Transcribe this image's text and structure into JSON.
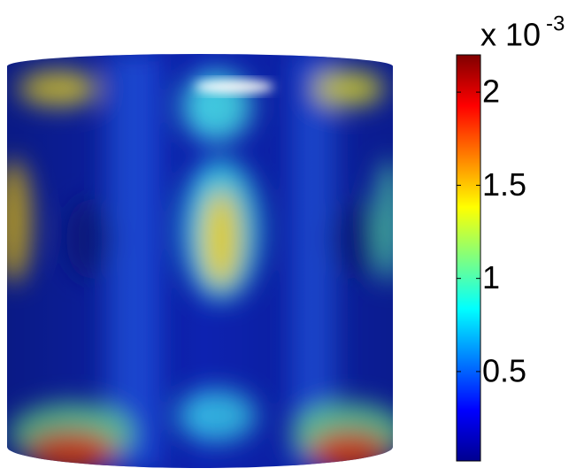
{
  "chart_data": {
    "type": "surface",
    "colorbar": {
      "multiplier": "x 10",
      "exponent": "-3",
      "clim": [
        0.02,
        2.2
      ],
      "ticks": [
        0.5,
        1,
        1.5,
        2
      ],
      "colormap": "jet"
    }
  }
}
